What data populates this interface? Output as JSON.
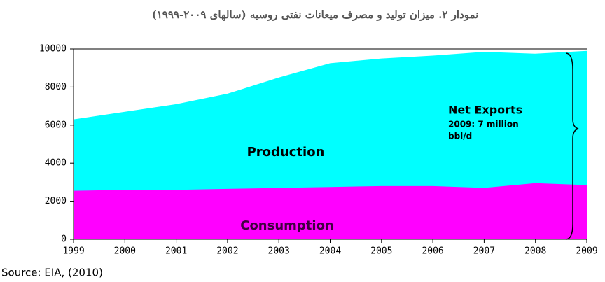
{
  "chart_data": {
    "type": "area",
    "title": "نمودار ۲. میزان تولید و مصرف میعانات نفتی روسیه (سالهای ۲۰۰۹-۱۹۹۹)",
    "x": [
      1999,
      2000,
      2001,
      2002,
      2003,
      2004,
      2005,
      2006,
      2007,
      2008,
      2009
    ],
    "series": [
      {
        "name": "Production",
        "color": "#00ffff",
        "values": [
          6300,
          6700,
          7100,
          7650,
          8500,
          9250,
          9500,
          9650,
          9850,
          9750,
          9900
        ]
      },
      {
        "name": "Consumption",
        "color": "#ff00ff",
        "values": [
          2550,
          2600,
          2600,
          2650,
          2700,
          2750,
          2800,
          2800,
          2700,
          2950,
          2850
        ]
      }
    ],
    "xlim": [
      1999,
      2009
    ],
    "xticks": [
      1999,
      2000,
      2001,
      2002,
      2003,
      2004,
      2005,
      2006,
      2007,
      2008,
      2009
    ],
    "ylim": [
      0,
      10000
    ],
    "yticks": [
      0,
      2000,
      4000,
      6000,
      8000,
      10000
    ],
    "annotations": [
      "Net Exports",
      "2009: 7 million",
      "bbl/d"
    ],
    "source": "Source: EIA, (2010)"
  }
}
